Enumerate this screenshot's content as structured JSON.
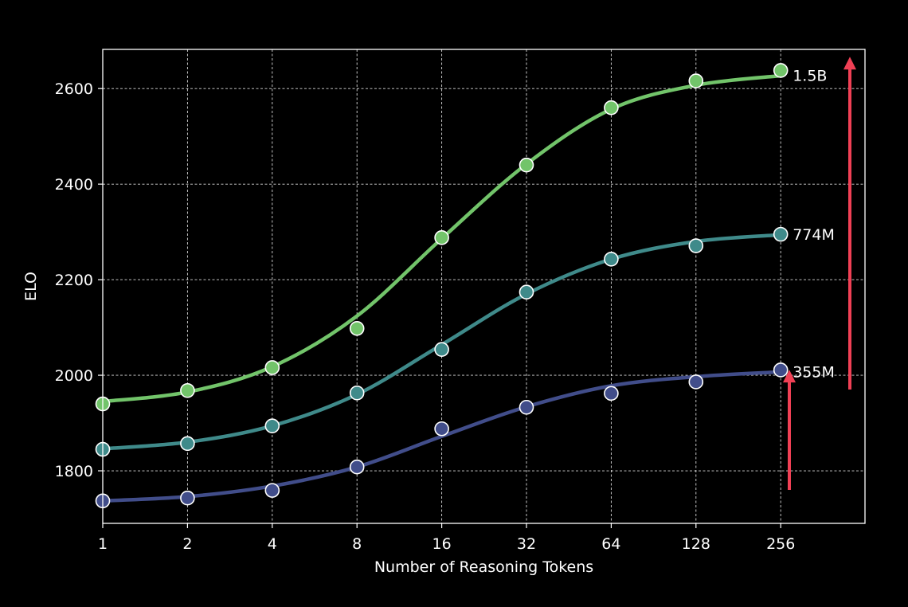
{
  "chart_data": {
    "type": "line",
    "title": "",
    "xlabel": "Number of Reasoning Tokens",
    "ylabel": "ELO",
    "x_scale": "log2",
    "x": [
      1,
      2,
      4,
      8,
      16,
      32,
      64,
      128,
      256
    ],
    "x_tick_labels": [
      "1",
      "2",
      "4",
      "8",
      "16",
      "32",
      "64",
      "128",
      "256"
    ],
    "y_ticks": [
      1800,
      2000,
      2200,
      2400,
      2600
    ],
    "y_tick_labels": [
      "1800",
      "2000",
      "2200",
      "2400",
      "2600"
    ],
    "ylim": [
      1690,
      2682
    ],
    "grid": true,
    "series": [
      {
        "name": "355M",
        "color": "#414d8a",
        "values": [
          1737,
          1743,
          1759,
          1808,
          1888,
          1933,
          1962,
          1986,
          2011
        ],
        "smooth": [
          1737,
          1746,
          1768,
          1808,
          1872,
          1934,
          1978,
          1997,
          2007
        ]
      },
      {
        "name": "774M",
        "color": "#3f8a8a",
        "values": [
          1845,
          1857,
          1894,
          1963,
          2054,
          2174,
          2243,
          2271,
          2295
        ],
        "smooth": [
          1846,
          1860,
          1894,
          1960,
          2064,
          2170,
          2243,
          2280,
          2294
        ]
      },
      {
        "name": "1.5B",
        "color": "#72c46a",
        "values": [
          1940,
          1968,
          2016,
          2098,
          2288,
          2440,
          2560,
          2616,
          2638
        ],
        "smooth": [
          1945,
          1965,
          2018,
          2124,
          2286,
          2442,
          2557,
          2607,
          2627
        ]
      }
    ],
    "arrow_color": "#f04055",
    "arrows": [
      {
        "x": 271,
        "y_from": 1760,
        "y_to": 2010
      },
      {
        "x": 403,
        "y_from": 1970,
        "y_to": 2665
      }
    ]
  }
}
